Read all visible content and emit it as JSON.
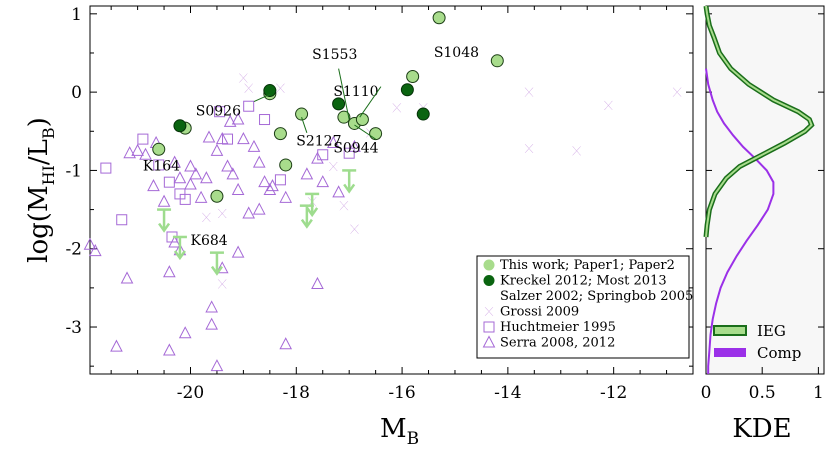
{
  "chart_data": [
    {
      "type": "scatter",
      "xlabel": "M",
      "xlabel_sub": "B",
      "ylabel_parts": {
        "pre": "log(M",
        "sub1": "HI",
        "mid": "/L",
        "sub2": "B",
        "post": ")"
      },
      "xlim": [
        -21.9,
        -10.5
      ],
      "ylim": [
        -3.6,
        1.1
      ],
      "xticks": [
        -20,
        -18,
        -16,
        -14,
        -12
      ],
      "xtick_labels": [
        "-20",
        "-18",
        "-16",
        "-14",
        "-12"
      ],
      "yticks": [
        1,
        0,
        -1,
        -2,
        -3
      ],
      "ytick_labels": [
        "1",
        "0",
        "-1",
        "-2",
        "-3"
      ],
      "colors": {
        "this_work": "#a8dc8c",
        "kreckel": "#0a6410",
        "comp": "#a569d6",
        "upper_limit": "#9edc8e"
      },
      "legend_position": "bottom-right",
      "legend": [
        {
          "marker": "circle-light",
          "label": "This work; Paper1; Paper2"
        },
        {
          "marker": "circle-dark",
          "label": "Kreckel 2012; Most 2013"
        },
        {
          "marker": "none",
          "label": "Salzer 2002; Springbob 2005"
        },
        {
          "marker": "bowtie",
          "label": "Grossi 2009"
        },
        {
          "marker": "square",
          "label": "Huchtmeier 1995"
        },
        {
          "marker": "triangle",
          "label": "Serra 2008, 2012"
        }
      ],
      "series": [
        {
          "name": "This work; Paper1; Paper2",
          "marker": "circle-light",
          "points": [
            [
              -15.3,
              0.95
            ],
            [
              -14.2,
              0.4
            ],
            [
              -15.8,
              0.2
            ],
            [
              -18.5,
              -0.02
            ],
            [
              -17.9,
              -0.28
            ],
            [
              -17.1,
              -0.32
            ],
            [
              -16.9,
              -0.4
            ],
            [
              -16.75,
              -0.35
            ],
            [
              -16.5,
              -0.53
            ],
            [
              -18.3,
              -0.53
            ],
            [
              -18.2,
              -0.93
            ],
            [
              -20.1,
              -0.46
            ],
            [
              -20.6,
              -0.73
            ],
            [
              -19.5,
              -1.33
            ]
          ]
        },
        {
          "name": "Kreckel 2012; Most 2013 / Salzer 2002; Springbob 2005",
          "marker": "circle-dark",
          "points": [
            [
              -18.5,
              0.02
            ],
            [
              -17.2,
              -0.15
            ],
            [
              -15.9,
              0.03
            ],
            [
              -15.6,
              -0.28
            ],
            [
              -20.2,
              -0.43
            ]
          ]
        },
        {
          "name": "Grossi 2009",
          "marker": "bowtie",
          "points": [
            [
              -19.0,
              0.18
            ],
            [
              -18.9,
              0.05
            ],
            [
              -18.3,
              0.05
            ],
            [
              -16.1,
              -0.2
            ],
            [
              -15.6,
              -0.2
            ],
            [
              -13.6,
              0.0
            ],
            [
              -12.1,
              -0.17
            ],
            [
              -10.8,
              0.0
            ],
            [
              -16.6,
              -0.52
            ],
            [
              -13.6,
              -0.72
            ],
            [
              -12.7,
              -0.75
            ],
            [
              -17.3,
              -0.95
            ],
            [
              -17.7,
              -1.4
            ],
            [
              -17.1,
              -1.45
            ],
            [
              -19.4,
              -1.55
            ],
            [
              -19.7,
              -1.6
            ],
            [
              -16.9,
              -1.75
            ],
            [
              -19.4,
              -2.45
            ]
          ]
        },
        {
          "name": "Huchtmeier 1995",
          "marker": "square",
          "points": [
            [
              -21.6,
              -0.97
            ],
            [
              -20.9,
              -0.6
            ],
            [
              -20.6,
              -0.93
            ],
            [
              -20.4,
              -1.15
            ],
            [
              -20.2,
              -1.3
            ],
            [
              -20.1,
              -1.37
            ],
            [
              -21.3,
              -1.63
            ],
            [
              -20.35,
              -1.85
            ],
            [
              -19.45,
              -0.25
            ],
            [
              -19.3,
              -0.6
            ],
            [
              -18.9,
              -0.18
            ],
            [
              -18.6,
              -0.35
            ],
            [
              -17.5,
              -0.8
            ],
            [
              -17.0,
              -0.78
            ],
            [
              -18.3,
              -1.12
            ]
          ]
        },
        {
          "name": "Serra 2008, 2012",
          "marker": "triangle",
          "points": [
            [
              -21.9,
              -1.95
            ],
            [
              -21.8,
              -2.03
            ],
            [
              -21.2,
              -2.38
            ],
            [
              -20.4,
              -2.3
            ],
            [
              -21.4,
              -3.25
            ],
            [
              -20.4,
              -3.3
            ],
            [
              -20.1,
              -3.08
            ],
            [
              -19.6,
              -2.97
            ],
            [
              -19.5,
              -3.5
            ],
            [
              -19.6,
              -2.75
            ],
            [
              -18.2,
              -3.22
            ],
            [
              -17.6,
              -2.45
            ],
            [
              -21.0,
              -0.75
            ],
            [
              -20.85,
              -0.8
            ],
            [
              -20.7,
              -1.2
            ],
            [
              -20.5,
              -1.4
            ],
            [
              -20.3,
              -0.9
            ],
            [
              -20.2,
              -1.1
            ],
            [
              -20.0,
              -1.18
            ],
            [
              -19.9,
              -1.05
            ],
            [
              -19.7,
              -1.1
            ],
            [
              -19.5,
              -0.75
            ],
            [
              -19.3,
              -0.95
            ],
            [
              -19.2,
              -1.05
            ],
            [
              -19.1,
              -1.25
            ],
            [
              -19.0,
              -0.6
            ],
            [
              -18.8,
              -0.7
            ],
            [
              -18.7,
              -0.9
            ],
            [
              -18.6,
              -1.15
            ],
            [
              -18.5,
              -1.25
            ],
            [
              -20.0,
              -0.95
            ],
            [
              -19.8,
              -1.35
            ],
            [
              -19.65,
              -0.58
            ],
            [
              -19.4,
              -0.6
            ],
            [
              -19.25,
              -0.38
            ],
            [
              -19.1,
              -0.35
            ],
            [
              -18.9,
              -1.55
            ],
            [
              -18.7,
              -1.5
            ],
            [
              -18.45,
              -1.2
            ],
            [
              -18.2,
              -1.35
            ],
            [
              -17.8,
              -1.05
            ],
            [
              -17.6,
              -0.85
            ],
            [
              -17.3,
              -0.65
            ],
            [
              -16.9,
              -0.7
            ],
            [
              -19.1,
              -2.05
            ],
            [
              -19.4,
              -2.25
            ],
            [
              -20.3,
              -1.92
            ],
            [
              -20.2,
              -2.02
            ],
            [
              -20.65,
              -0.65
            ],
            [
              -21.15,
              -0.78
            ],
            [
              -17.5,
              -1.15
            ],
            [
              -17.2,
              -1.28
            ]
          ]
        },
        {
          "name": "upper limits",
          "marker": "arrow-down",
          "points": [
            [
              -20.5,
              -1.5
            ],
            [
              -20.2,
              -1.85
            ],
            [
              -19.5,
              -2.05
            ],
            [
              -17.7,
              -1.3
            ],
            [
              -17.8,
              -1.45
            ],
            [
              -17.0,
              -1.0
            ]
          ]
        }
      ],
      "annotations": [
        {
          "text": "S1553",
          "point": [
            -16.9,
            -0.4
          ]
        },
        {
          "text": "S1048",
          "point": [
            -15.8,
            0.2
          ]
        },
        {
          "text": "S1110",
          "point": [
            -16.75,
            -0.35
          ]
        },
        {
          "text": "S0926",
          "point": [
            -18.5,
            -0.02
          ]
        },
        {
          "text": "S2127",
          "point": [
            -17.9,
            -0.28
          ]
        },
        {
          "text": "S0944",
          "point": [
            -16.5,
            -0.53
          ]
        },
        {
          "text": "K164",
          "point": [
            -20.6,
            -0.73
          ]
        },
        {
          "text": "K684",
          "point": [
            -19.5,
            -2.05
          ]
        }
      ]
    },
    {
      "type": "line",
      "xlabel": "KDE",
      "xlim": [
        0,
        1.05
      ],
      "ylim": [
        -3.6,
        1.1
      ],
      "xticks": [
        0,
        0.5,
        1
      ],
      "xtick_labels": [
        "0",
        "0.5",
        "1"
      ],
      "legend_position": "bottom-right",
      "colors": {
        "IEG": "#1a6e1a",
        "IEG_fill": "#a8dc8c",
        "Comp": "#9b30e8"
      },
      "series": [
        {
          "name": "IEG",
          "y": [
            1.1,
            1.0,
            0.85,
            0.7,
            0.5,
            0.3,
            0.1,
            -0.1,
            -0.25,
            -0.35,
            -0.42,
            -0.5,
            -0.65,
            -0.8,
            -0.95,
            -1.1,
            -1.3,
            -1.5,
            -1.7,
            -1.85
          ],
          "kde": [
            0.0,
            0.01,
            0.03,
            0.07,
            0.12,
            0.22,
            0.38,
            0.6,
            0.82,
            0.92,
            0.94,
            0.88,
            0.7,
            0.5,
            0.3,
            0.18,
            0.08,
            0.03,
            0.01,
            0.0
          ]
        },
        {
          "name": "Comp",
          "y": [
            0.3,
            0.1,
            -0.1,
            -0.25,
            -0.4,
            -0.55,
            -0.7,
            -0.85,
            -1.0,
            -1.15,
            -1.3,
            -1.5,
            -1.7,
            -1.9,
            -2.1,
            -2.3,
            -2.5,
            -2.7,
            -2.9,
            -3.1,
            -3.3,
            -3.5,
            -3.6
          ],
          "kde": [
            0.0,
            0.02,
            0.06,
            0.1,
            0.16,
            0.24,
            0.33,
            0.44,
            0.54,
            0.6,
            0.6,
            0.55,
            0.46,
            0.36,
            0.27,
            0.19,
            0.13,
            0.09,
            0.06,
            0.04,
            0.03,
            0.02,
            0.02
          ]
        }
      ]
    }
  ]
}
